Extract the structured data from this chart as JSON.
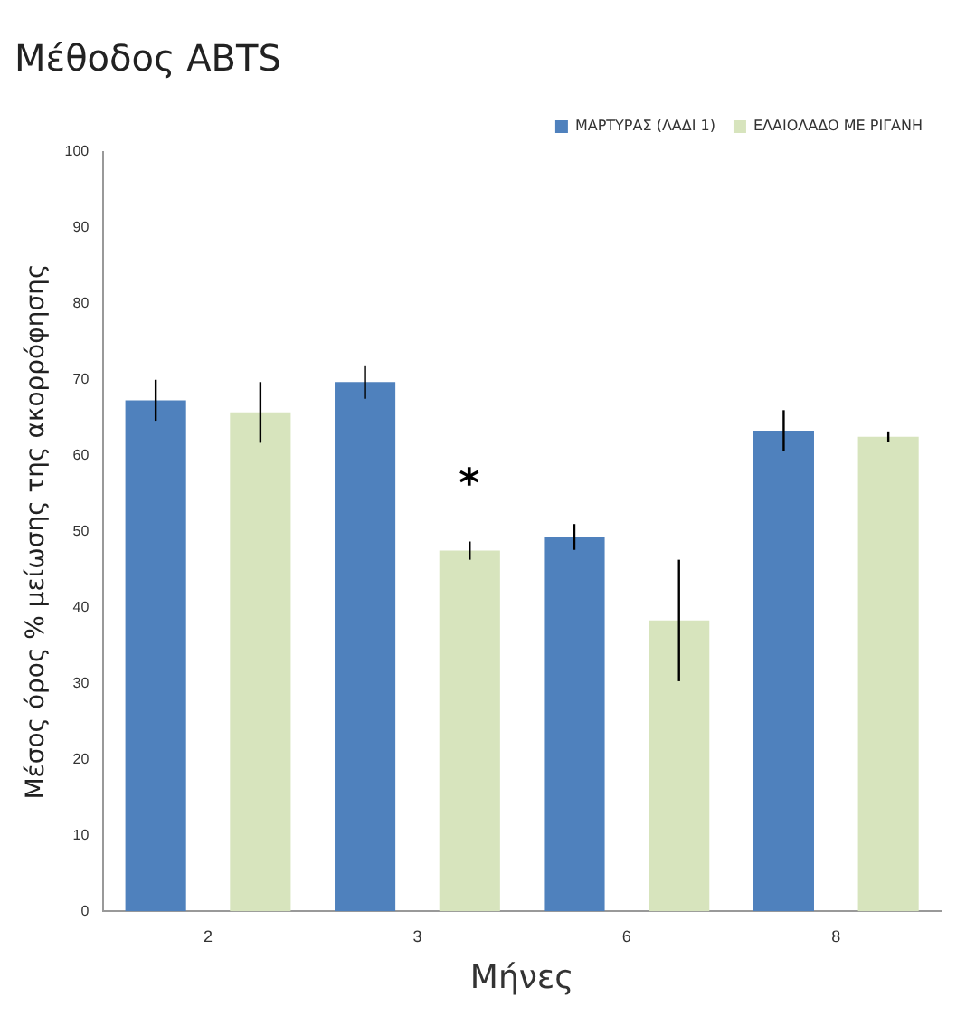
{
  "chart_data": {
    "type": "bar",
    "title": "Μέθοδος ABTS",
    "xlabel": "Μήνες",
    "ylabel": "Μέσος όρος % μείωσης της ακορρόφησης",
    "categories": [
      "2",
      "3",
      "6",
      "8"
    ],
    "series": [
      {
        "name": "ΜΑΡΤΥΡΑΣ (ΛΑΔΙ 1)",
        "color": "#4f81bd",
        "values": [
          67.3,
          69.7,
          49.3,
          63.3
        ],
        "errors": [
          2.7,
          2.2,
          1.7,
          2.7
        ]
      },
      {
        "name": "ΕΛΑΙΟΛΑΔΟ ΜΕ ΡΙΓΑΝΗ",
        "color": "#d7e4bd",
        "values": [
          65.7,
          47.5,
          38.3,
          62.5
        ],
        "errors": [
          4,
          1.2,
          8,
          0.7
        ]
      }
    ],
    "ylim": [
      0,
      100
    ],
    "yticks": [
      0,
      10,
      20,
      30,
      40,
      50,
      60,
      70,
      80,
      90,
      100
    ],
    "grid": false,
    "legend": "top right",
    "annotations": [
      "*"
    ]
  }
}
